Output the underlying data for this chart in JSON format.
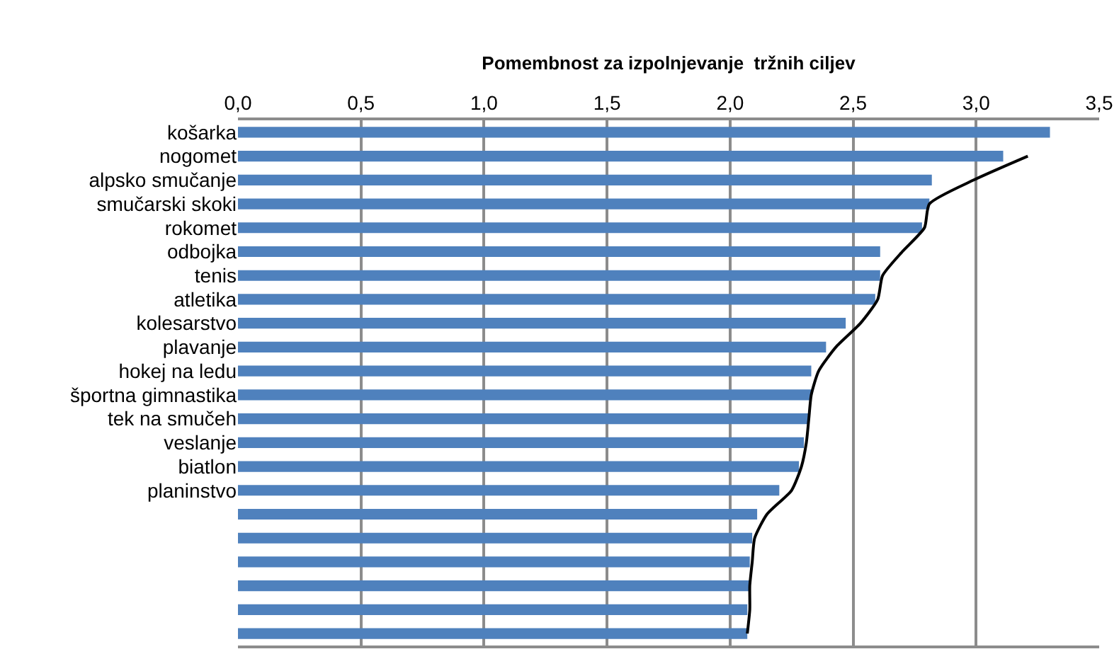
{
  "chart_data": {
    "type": "bar",
    "orientation": "horizontal",
    "xlabel": "Pomembnost za izpolnjevanje  tržnih ciljev",
    "categories": [
      "košarka",
      "nogomet",
      "alpsko smučanje",
      "smučarski skoki",
      "rokomet",
      "odbojka",
      "tenis",
      "atletika",
      "kolesarstvo",
      "plavanje",
      "hokej na ledu",
      "športna gimnastika",
      "tek na smučeh",
      "veslanje",
      "biatlon",
      "planinstvo",
      null,
      null,
      null,
      null,
      null,
      null
    ],
    "series": [
      {
        "color": "#4f81bd",
        "values": [
          3.3,
          3.11,
          2.82,
          2.81,
          2.78,
          2.61,
          2.61,
          2.59,
          2.47,
          2.39,
          2.33,
          2.33,
          2.32,
          2.3,
          2.28,
          2.2,
          2.11,
          2.09,
          2.08,
          2.08,
          2.07,
          2.07
        ]
      },
      {
        "type": "line",
        "color": "#000000",
        "marker": "none",
        "line_style": "solid",
        "values": [
          null,
          3.21,
          2.99,
          2.81,
          2.79,
          2.7,
          2.62,
          2.6,
          2.53,
          2.43,
          2.36,
          2.33,
          2.32,
          2.31,
          2.29,
          2.25,
          2.15,
          2.1,
          2.09,
          2.08,
          2.08,
          2.07
        ]
      }
    ],
    "xlim": [
      0,
      3.5
    ],
    "xticks": [
      {
        "value": 0,
        "label": "0,0"
      },
      {
        "value": 0.5,
        "label": "0,5"
      },
      {
        "value": 1,
        "label": "1,0"
      },
      {
        "value": 1.5,
        "label": "1,5"
      },
      {
        "value": 2,
        "label": "2,0"
      },
      {
        "value": 2.5,
        "label": "2,5"
      },
      {
        "value": 3,
        "label": "3,0"
      },
      {
        "value": 3.5,
        "label": "3,5"
      }
    ],
    "grid": "x",
    "legend": false
  }
}
